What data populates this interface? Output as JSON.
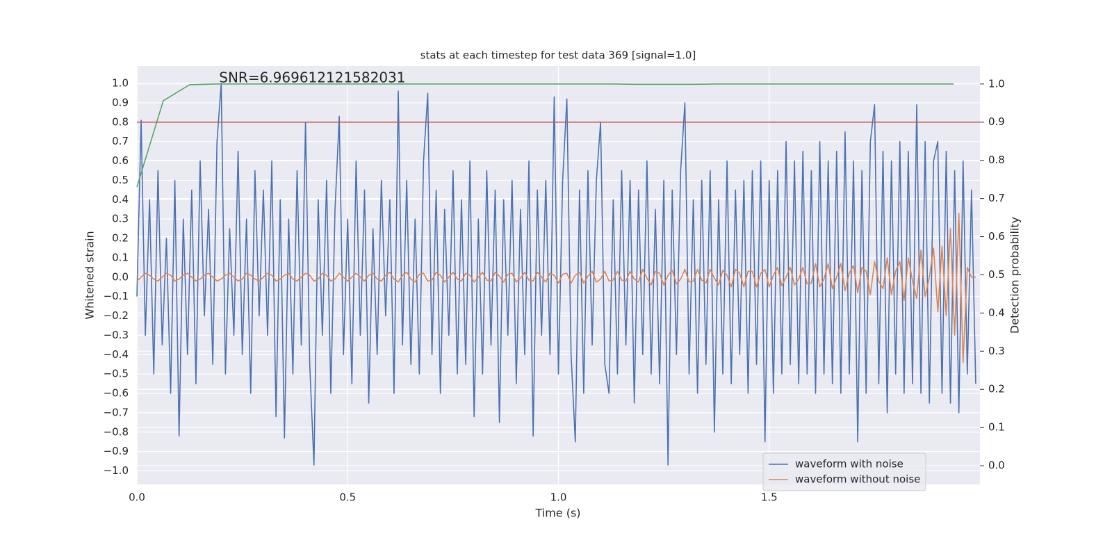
{
  "chart_data": {
    "type": "line",
    "title": "stats at each timestep for test data 369 [signal=1.0]",
    "xlabel": "Time (s)",
    "ylabel": "Whitened strain",
    "y2label": "Detection probability",
    "annotation": {
      "text": "SNR=6.969612121582031",
      "x": 0.195,
      "y": 1.0
    },
    "grid": true,
    "legend": "lower right",
    "xlim": [
      0,
      2.0
    ],
    "xticks": [
      {
        "value": 0,
        "label": "0.0"
      },
      0.5,
      {
        "value": 1,
        "label": "1.0"
      },
      1.5
    ],
    "ylim": [
      -1.07,
      1.09
    ],
    "yticks": [
      {
        "value": -1,
        "label": "−1.0"
      },
      {
        "value": -0.9,
        "label": "−0.9"
      },
      {
        "value": -0.8,
        "label": "−0.8"
      },
      {
        "value": -0.7,
        "label": "−0.7"
      },
      {
        "value": -0.6,
        "label": "−0.6"
      },
      {
        "value": -0.5,
        "label": "−0.5"
      },
      {
        "value": -0.4,
        "label": "−0.4"
      },
      {
        "value": -0.3,
        "label": "−0.3"
      },
      {
        "value": -0.2,
        "label": "−0.2"
      },
      {
        "value": -0.1,
        "label": "−0.1"
      },
      {
        "value": 0,
        "label": "0.0"
      },
      0.1,
      0.2,
      0.3,
      0.4,
      0.5,
      0.6,
      0.7,
      0.8,
      0.9,
      {
        "value": 1,
        "label": "1.0"
      }
    ],
    "y2lim": [
      -0.049,
      1.047
    ],
    "y2ticks": [
      {
        "value": 0,
        "label": "0.0"
      },
      0.1,
      0.2,
      0.3,
      0.4,
      0.5,
      0.6,
      0.7,
      0.8,
      0.9,
      {
        "value": 1,
        "label": "1.0"
      }
    ],
    "hlines": [
      {
        "value": 0.9,
        "axis": "y2",
        "color": "#c44e52"
      }
    ],
    "x": [
      0,
      0.01,
      0.02,
      0.03,
      0.04,
      0.05,
      0.06,
      0.07,
      0.08,
      0.09,
      0.1,
      0.11,
      0.12,
      0.13,
      0.14,
      0.15,
      0.16,
      0.17,
      0.18,
      0.19,
      0.2,
      0.21,
      0.22,
      0.23,
      0.24,
      0.25,
      0.26,
      0.27,
      0.28,
      0.29,
      0.3,
      0.31,
      0.32,
      0.33,
      0.34,
      0.35,
      0.36,
      0.37,
      0.38,
      0.39,
      0.4,
      0.41,
      0.42,
      0.43,
      0.44,
      0.45,
      0.46,
      0.47,
      0.48,
      0.49,
      0.5,
      0.51,
      0.52,
      0.53,
      0.54,
      0.55,
      0.56,
      0.57,
      0.58,
      0.59,
      0.6,
      0.61,
      0.62,
      0.63,
      0.64,
      0.65,
      0.66,
      0.67,
      0.68,
      0.69,
      0.7,
      0.71,
      0.72,
      0.73,
      0.74,
      0.75,
      0.76,
      0.77,
      0.78,
      0.79,
      0.8,
      0.81,
      0.82,
      0.83,
      0.84,
      0.85,
      0.86,
      0.87,
      0.88,
      0.89,
      0.9,
      0.91,
      0.92,
      0.93,
      0.94,
      0.95,
      0.96,
      0.97,
      0.98,
      0.99,
      1.0,
      1.01,
      1.02,
      1.03,
      1.04,
      1.05,
      1.06,
      1.07,
      1.08,
      1.09,
      1.1,
      1.11,
      1.12,
      1.13,
      1.14,
      1.15,
      1.16,
      1.17,
      1.18,
      1.19,
      1.2,
      1.21,
      1.22,
      1.23,
      1.24,
      1.25,
      1.26,
      1.27,
      1.28,
      1.29,
      1.3,
      1.31,
      1.32,
      1.33,
      1.34,
      1.35,
      1.36,
      1.37,
      1.38,
      1.39,
      1.4,
      1.41,
      1.42,
      1.43,
      1.44,
      1.45,
      1.46,
      1.47,
      1.48,
      1.49,
      1.5,
      1.51,
      1.52,
      1.53,
      1.54,
      1.55,
      1.56,
      1.57,
      1.58,
      1.59,
      1.6,
      1.61,
      1.62,
      1.63,
      1.64,
      1.65,
      1.66,
      1.67,
      1.68,
      1.69,
      1.7,
      1.71,
      1.72,
      1.73,
      1.74,
      1.75,
      1.76,
      1.77,
      1.78,
      1.79,
      1.8,
      1.81,
      1.82,
      1.83,
      1.84,
      1.85,
      1.86,
      1.87,
      1.88,
      1.89,
      1.9,
      1.91,
      1.92,
      1.93,
      1.94,
      1.95,
      1.96,
      1.97,
      1.98,
      1.99
    ],
    "series": [
      {
        "name": "waveform with noise",
        "color": "#4c72b0",
        "values": [
          -0.1,
          0.81,
          -0.3,
          0.4,
          -0.5,
          0.55,
          -0.35,
          0.2,
          -0.6,
          0.5,
          -0.82,
          0.3,
          -0.4,
          0.45,
          -0.55,
          0.6,
          -0.2,
          0.35,
          -0.45,
          0.7,
          1.0,
          -0.5,
          0.25,
          -0.3,
          0.65,
          -0.4,
          0.3,
          -0.6,
          0.55,
          -0.2,
          0.45,
          -0.3,
          0.6,
          -0.72,
          0.4,
          -0.83,
          0.3,
          -0.5,
          0.55,
          -0.35,
          0.8,
          -0.45,
          -0.97,
          0.4,
          -0.3,
          0.5,
          -0.6,
          0.35,
          0.83,
          -0.4,
          0.3,
          -0.55,
          0.6,
          -0.3,
          0.45,
          -0.65,
          0.25,
          -0.4,
          0.5,
          -0.2,
          0.4,
          -0.6,
          0.96,
          -0.35,
          0.5,
          -0.45,
          0.3,
          -0.5,
          0.6,
          0.95,
          -0.4,
          0.45,
          -0.6,
          0.35,
          -0.3,
          0.55,
          -0.5,
          0.4,
          -0.45,
          0.6,
          -0.72,
          0.3,
          -0.5,
          0.55,
          -0.35,
          0.45,
          -0.75,
          0.4,
          -0.3,
          0.5,
          -0.55,
          0.35,
          -0.4,
          0.6,
          -0.82,
          0.45,
          -0.3,
          0.5,
          -0.4,
          0.93,
          -0.5,
          0.5,
          0.92,
          -0.4,
          -0.85,
          0.45,
          -0.6,
          0.55,
          -0.35,
          0.5,
          0.8,
          -0.45,
          -0.6,
          0.4,
          -0.5,
          0.55,
          -0.35,
          0.5,
          -0.65,
          0.45,
          -0.4,
          0.6,
          -0.5,
          0.35,
          -0.55,
          0.5,
          -0.97,
          0.45,
          -0.4,
          0.55,
          0.9,
          -0.5,
          0.4,
          -0.6,
          0.5,
          -0.45,
          0.55,
          -0.8,
          0.4,
          -0.5,
          0.6,
          -0.55,
          0.45,
          -0.4,
          0.5,
          -0.6,
          0.55,
          -0.45,
          0.6,
          -0.85,
          0.5,
          -0.6,
          0.55,
          -0.5,
          0.7,
          -0.45,
          0.6,
          -0.55,
          0.65,
          -0.5,
          0.55,
          -0.6,
          0.7,
          -0.5,
          0.6,
          -0.55,
          0.65,
          -0.6,
          0.75,
          -0.5,
          0.6,
          -0.85,
          0.55,
          -0.6,
          0.7,
          0.89,
          -0.55,
          0.65,
          -0.7,
          0.6,
          -0.5,
          0.7,
          -0.6,
          0.65,
          -0.55,
          0.89,
          -0.6,
          0.7,
          -0.65,
          0.6,
          0.7,
          -0.6,
          0.65,
          -0.65,
          0.55,
          -0.7,
          0.6,
          -0.5,
          0.45,
          -0.55
        ]
      },
      {
        "name": "waveform without noise",
        "color": "#dd8452",
        "values": [
          -0.02,
          0.0,
          0.02,
          0.01,
          -0.01,
          -0.02,
          0.0,
          0.02,
          0.01,
          -0.02,
          -0.01,
          0.01,
          0.02,
          0.0,
          -0.02,
          -0.01,
          0.01,
          0.02,
          0.0,
          -0.02,
          -0.01,
          0.01,
          0.02,
          0.0,
          -0.02,
          -0.01,
          0.02,
          0.01,
          -0.01,
          -0.02,
          0.0,
          0.02,
          0.01,
          -0.02,
          -0.01,
          0.01,
          0.02,
          -0.01,
          -0.02,
          0.0,
          0.02,
          0.01,
          -0.02,
          -0.01,
          0.02,
          0.01,
          -0.02,
          -0.01,
          0.02,
          0.0,
          -0.02,
          0.0,
          0.02,
          0.0,
          -0.02,
          0.01,
          0.02,
          -0.01,
          -0.02,
          0.01,
          0.025,
          -0.01,
          -0.025,
          0.01,
          0.025,
          -0.01,
          -0.025,
          0.015,
          0.02,
          -0.02,
          -0.015,
          0.025,
          0.01,
          -0.025,
          0.0,
          0.025,
          -0.01,
          -0.02,
          0.02,
          0.01,
          -0.025,
          0.0,
          0.025,
          -0.015,
          -0.02,
          0.025,
          0.005,
          -0.025,
          0.015,
          0.02,
          -0.025,
          -0.005,
          0.025,
          -0.015,
          -0.02,
          0.025,
          0.0,
          -0.025,
          0.02,
          0.01,
          -0.03,
          0.015,
          0.02,
          -0.03,
          0.01,
          0.025,
          -0.03,
          0.005,
          0.03,
          -0.025,
          -0.01,
          0.03,
          -0.02,
          -0.015,
          0.03,
          -0.015,
          -0.02,
          0.03,
          -0.01,
          -0.025,
          0.04,
          -0.005,
          -0.04,
          0.03,
          0.02,
          -0.04,
          0.01,
          0.035,
          -0.035,
          -0.01,
          0.04,
          -0.025,
          -0.02,
          0.04,
          -0.015,
          -0.03,
          0.04,
          -0.005,
          -0.04,
          0.035,
          0.01,
          -0.05,
          0.04,
          0.02,
          -0.05,
          0.03,
          0.03,
          -0.05,
          0.02,
          0.04,
          -0.05,
          0.01,
          0.05,
          -0.045,
          0.0,
          0.05,
          -0.04,
          -0.01,
          0.05,
          -0.035,
          -0.03,
          0.07,
          -0.05,
          -0.01,
          0.07,
          -0.06,
          0.0,
          0.07,
          -0.07,
          0.02,
          0.06,
          -0.08,
          0.05,
          0.03,
          -0.09,
          0.08,
          -0.02,
          -0.06,
          0.1,
          -0.09,
          0.03,
          0.08,
          -0.12,
          0.1,
          -0.02,
          -0.11,
          0.14,
          -0.1,
          0.0,
          0.15,
          -0.18,
          0.16,
          -0.2,
          0.25,
          -0.3,
          0.33,
          -0.44,
          0.05,
          0.0,
          0.0
        ]
      },
      {
        "color": "#55a868",
        "axis": "y2",
        "x": [
          0,
          0.0625,
          0.125,
          0.1875,
          0.25,
          0.3125,
          0.375,
          0.4375,
          0.5,
          0.5625,
          0.625,
          0.6875,
          0.75,
          0.8125,
          0.875,
          0.9375,
          1.0,
          1.0625,
          1.125,
          1.1875,
          1.25,
          1.3125,
          1.375,
          1.4375,
          1.5,
          1.5625,
          1.625,
          1.6875,
          1.75,
          1.8125,
          1.875,
          1.9375
        ],
        "values": [
          0.73,
          0.956,
          0.998,
          1.0,
          1.0,
          1.0,
          1.0,
          1.0,
          1.0,
          1.0,
          1.0,
          1.0,
          1.0,
          1.0,
          1.0,
          1.0,
          1.0,
          1.0,
          1.0,
          0.999,
          0.999,
          0.999,
          1.0,
          1.0,
          1.0,
          1.0,
          1.0,
          1.0,
          1.0,
          1.0,
          1.0,
          1.0
        ]
      }
    ]
  }
}
